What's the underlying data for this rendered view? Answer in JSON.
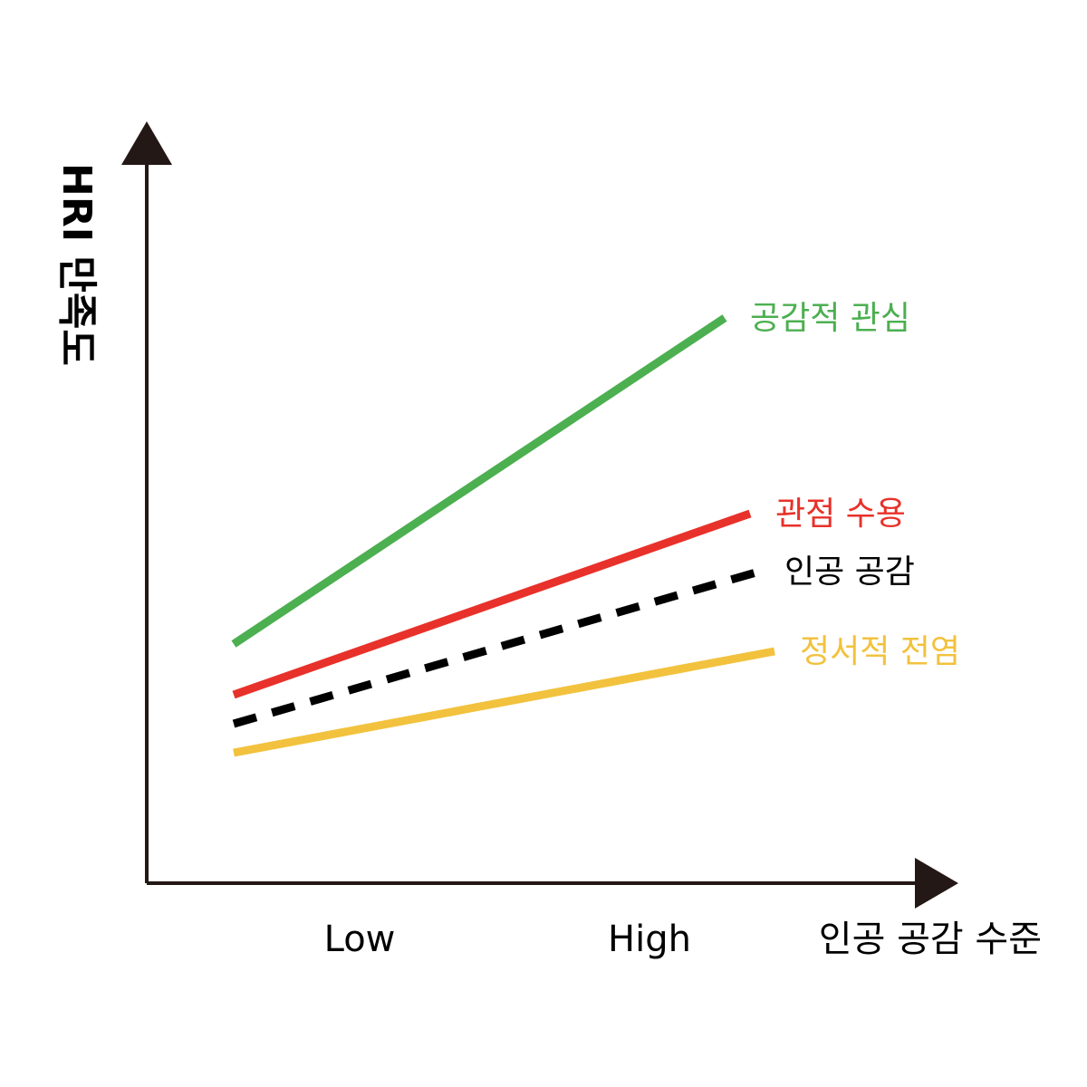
{
  "chart_data": {
    "type": "line",
    "title": "",
    "xlabel": "인공 공감 수준",
    "ylabel": "HRI 만족도",
    "categories": [
      "Low",
      "High"
    ],
    "ylim": [
      0,
      100
    ],
    "grid": false,
    "legend": "inline-right",
    "series": [
      {
        "name": "공감적 관심",
        "values": [
          33,
          78
        ],
        "color": "#4caf50",
        "style": "solid"
      },
      {
        "name": "관점 수용",
        "values": [
          26,
          51
        ],
        "color": "#e8312a",
        "style": "solid"
      },
      {
        "name": "인공 공감",
        "values": [
          22,
          43
        ],
        "color": "#000000",
        "style": "dashed"
      },
      {
        "name": "정서적 전염",
        "values": [
          18,
          32
        ],
        "color": "#f2c23e",
        "style": "solid"
      }
    ]
  }
}
